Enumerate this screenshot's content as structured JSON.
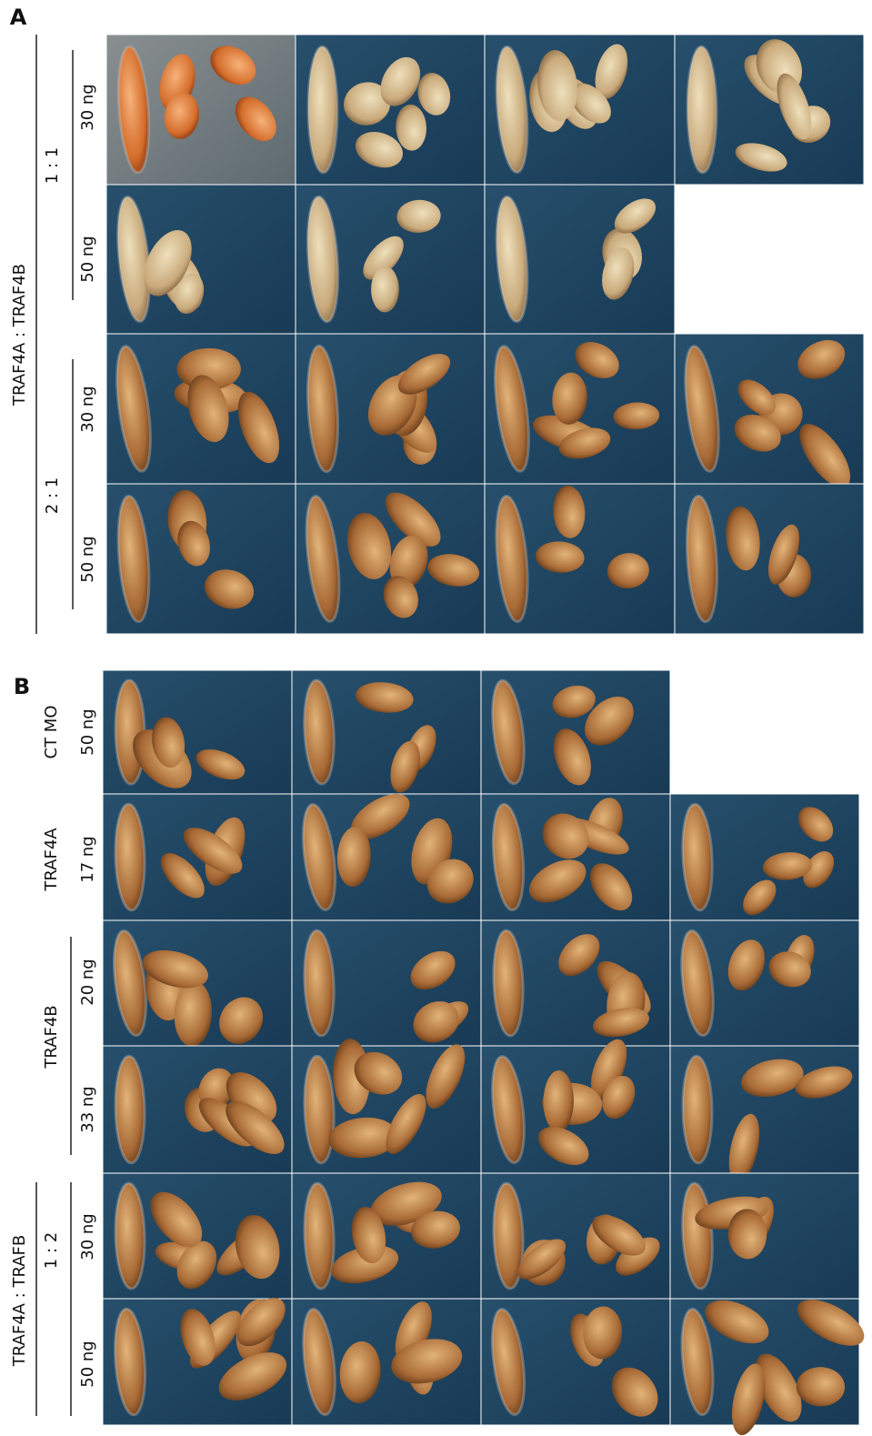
{
  "panel_a": {
    "label": "A",
    "title": "TRAF4A : TRAF4B",
    "groups": [
      {
        "ratio": "1 : 1",
        "doses": [
          "30 ng",
          "50 ng"
        ]
      },
      {
        "ratio": "2 : 1",
        "doses": [
          "30 ng",
          "50 ng"
        ]
      }
    ]
  },
  "panel_b": {
    "label": "B",
    "groups": [
      {
        "name": "CT MO",
        "doses": [
          "50 ng"
        ]
      },
      {
        "name": "TRAF4A",
        "doses": [
          "17 ng"
        ]
      },
      {
        "name": "TRAF4B",
        "doses": [
          "20 ng",
          "33 ng"
        ]
      },
      {
        "title": "TRAF4A : TRAFB",
        "ratio": "1 : 2",
        "doses": [
          "30 ng",
          "50 ng"
        ]
      }
    ]
  }
}
